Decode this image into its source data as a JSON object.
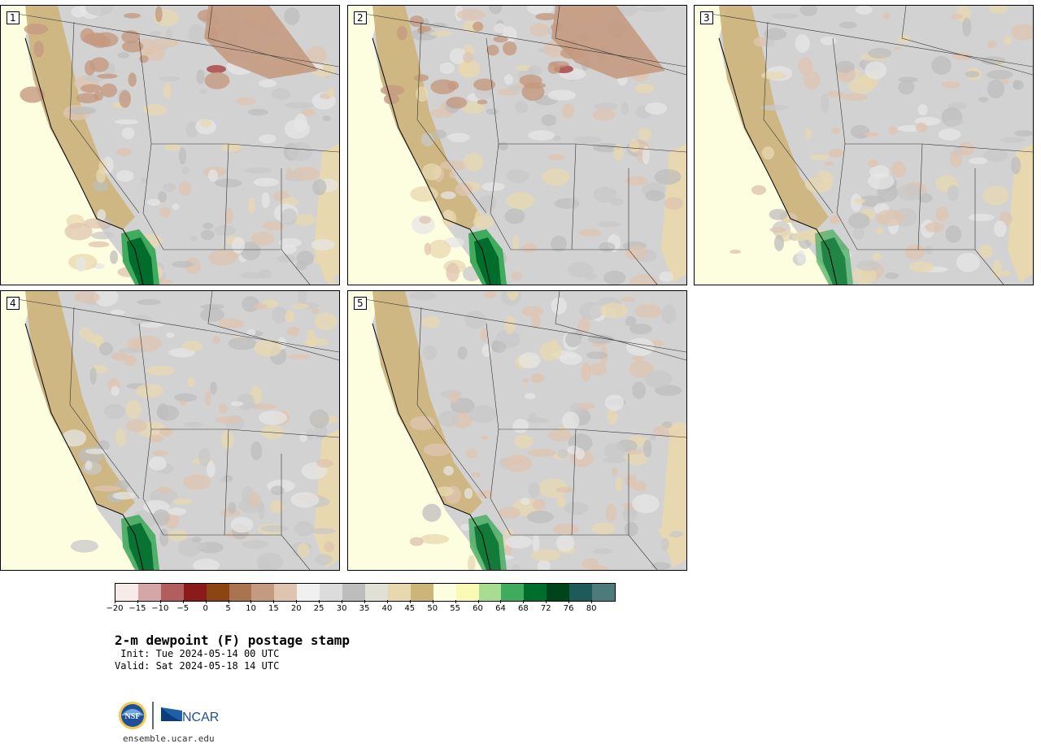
{
  "panels": [
    {
      "label": "1"
    },
    {
      "label": "2"
    },
    {
      "label": "3"
    },
    {
      "label": "4"
    },
    {
      "label": "5"
    }
  ],
  "colorbar": {
    "colors": [
      "#f7ebe9",
      "#d4a6a6",
      "#b25e5e",
      "#8b1a1a",
      "#8b4513",
      "#a9744f",
      "#c49a80",
      "#dfc4b0",
      "#f0f0f0",
      "#dcdcdc",
      "#bdbdbd",
      "#e0e0d5",
      "#e8d8b0",
      "#cdb479",
      "#fdfde0",
      "#fafab4",
      "#a8dc90",
      "#41ab5d",
      "#006d2c",
      "#00441b",
      "#1e5a5a",
      "#4d7b7b"
    ],
    "tick_labels": [
      "-20",
      "-15",
      "-10",
      "-5",
      "0",
      "5",
      "10",
      "15",
      "20",
      "25",
      "30",
      "35",
      "40",
      "45",
      "50",
      "55",
      "60",
      "64",
      "68",
      "72",
      "76",
      "80"
    ]
  },
  "title": "2-m dewpoint (F) postage stamp",
  "init": " Init: Tue 2024-05-14 00 UTC",
  "valid": "Valid: Sat 2024-05-18 14 UTC",
  "logo": {
    "nsf": "NSF",
    "ncar": "NCAR"
  },
  "url": "ensemble.ucar.edu"
}
